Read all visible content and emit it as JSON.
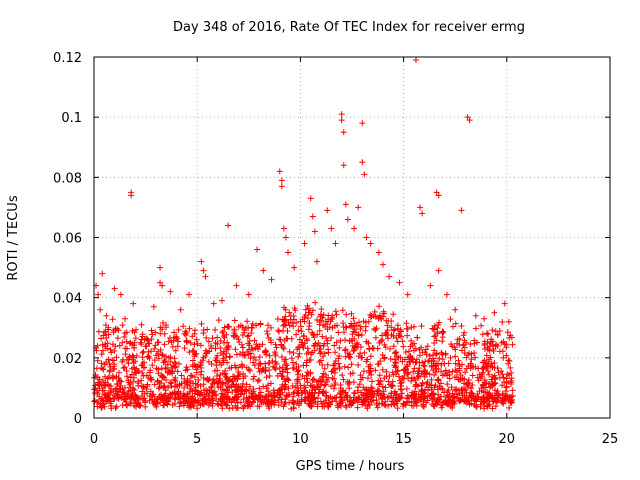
{
  "chart_data": {
    "type": "scatter",
    "title": "Day 348 of 2016, Rate Of TEC Index for receiver ermg",
    "xlabel": "GPS time / hours",
    "ylabel": "ROTI / TECUs",
    "xlim": [
      0,
      25
    ],
    "ylim": [
      0,
      0.12
    ],
    "x_ticks": [
      0,
      5,
      10,
      15,
      20,
      25
    ],
    "y_ticks": [
      0,
      0.02,
      0.04,
      0.06,
      0.08,
      0.1,
      0.12
    ],
    "x_tick_labels": [
      "0",
      "5",
      "10",
      "15",
      "20",
      "25"
    ],
    "y_tick_labels": [
      "0",
      "0.02",
      "0.04",
      "0.06",
      "0.08",
      "0.1",
      "0.12"
    ],
    "grid": true,
    "marker": "+",
    "color": "#ff0000",
    "series": [
      {
        "name": "ROTI",
        "points": [
          [
            0.1,
            0.044
          ],
          [
            0.2,
            0.041
          ],
          [
            0.3,
            0.036
          ],
          [
            0.4,
            0.048
          ],
          [
            0.6,
            0.034
          ],
          [
            1.0,
            0.043
          ],
          [
            1.3,
            0.041
          ],
          [
            1.5,
            0.033
          ],
          [
            1.8,
            0.075
          ],
          [
            1.8,
            0.074
          ],
          [
            1.9,
            0.038
          ],
          [
            2.3,
            0.031
          ],
          [
            2.9,
            0.037
          ],
          [
            3.2,
            0.05
          ],
          [
            3.2,
            0.045
          ],
          [
            3.3,
            0.044
          ],
          [
            3.7,
            0.042
          ],
          [
            4.2,
            0.036
          ],
          [
            4.6,
            0.041
          ],
          [
            5.2,
            0.052
          ],
          [
            5.3,
            0.049
          ],
          [
            5.4,
            0.047
          ],
          [
            5.8,
            0.038
          ],
          [
            6.2,
            0.039
          ],
          [
            6.5,
            0.064
          ],
          [
            6.9,
            0.044
          ],
          [
            7.5,
            0.041
          ],
          [
            7.9,
            0.056
          ],
          [
            8.2,
            0.049
          ],
          [
            8.6,
            0.046
          ],
          [
            9.0,
            0.082
          ],
          [
            9.1,
            0.079
          ],
          [
            9.1,
            0.077
          ],
          [
            9.2,
            0.063
          ],
          [
            9.3,
            0.06
          ],
          [
            9.4,
            0.055
          ],
          [
            9.7,
            0.05
          ],
          [
            10.2,
            0.058
          ],
          [
            10.5,
            0.073
          ],
          [
            10.6,
            0.067
          ],
          [
            10.7,
            0.062
          ],
          [
            10.8,
            0.052
          ],
          [
            11.3,
            0.069
          ],
          [
            11.5,
            0.063
          ],
          [
            11.7,
            0.058
          ],
          [
            12.0,
            0.101
          ],
          [
            12.0,
            0.099
          ],
          [
            12.1,
            0.095
          ],
          [
            12.1,
            0.084
          ],
          [
            12.2,
            0.071
          ],
          [
            12.3,
            0.066
          ],
          [
            12.6,
            0.063
          ],
          [
            12.8,
            0.07
          ],
          [
            13.0,
            0.098
          ],
          [
            13.0,
            0.085
          ],
          [
            13.1,
            0.081
          ],
          [
            13.2,
            0.06
          ],
          [
            13.4,
            0.058
          ],
          [
            13.8,
            0.055
          ],
          [
            14.0,
            0.051
          ],
          [
            14.3,
            0.047
          ],
          [
            14.8,
            0.045
          ],
          [
            15.2,
            0.041
          ],
          [
            15.6,
            0.119
          ],
          [
            15.8,
            0.07
          ],
          [
            15.9,
            0.068
          ],
          [
            16.3,
            0.044
          ],
          [
            16.6,
            0.075
          ],
          [
            16.7,
            0.074
          ],
          [
            16.7,
            0.049
          ],
          [
            17.1,
            0.041
          ],
          [
            17.5,
            0.036
          ],
          [
            17.8,
            0.069
          ],
          [
            18.1,
            0.1
          ],
          [
            18.2,
            0.099
          ],
          [
            18.5,
            0.034
          ],
          [
            18.9,
            0.033
          ],
          [
            19.4,
            0.035
          ],
          [
            19.9,
            0.038
          ],
          [
            20.1,
            0.032
          ]
        ]
      }
    ]
  }
}
